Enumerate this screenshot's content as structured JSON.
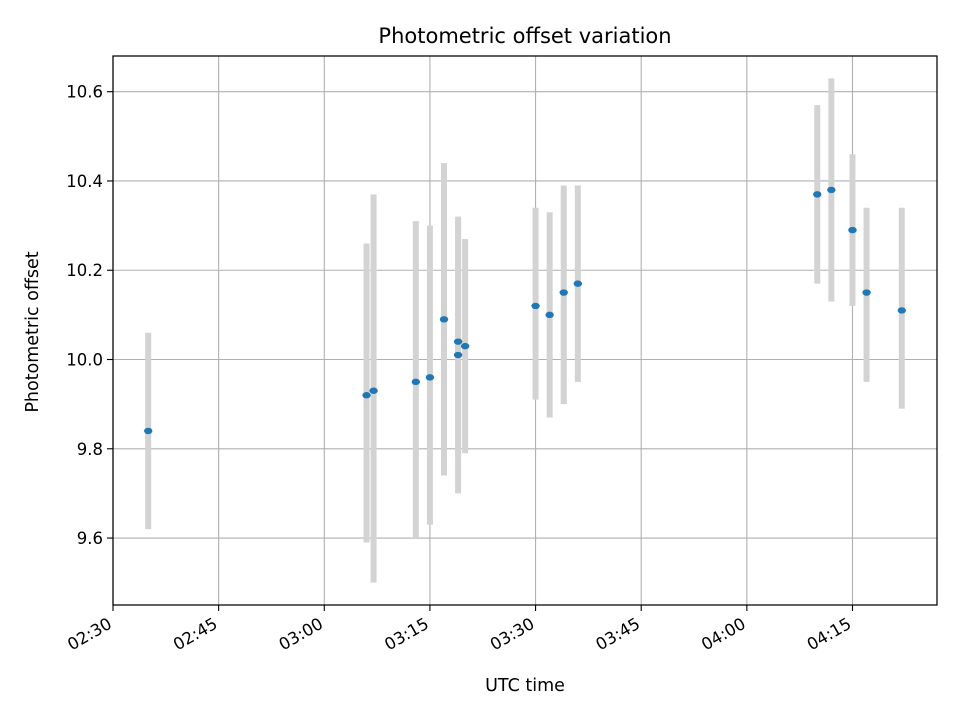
{
  "chart_data": {
    "type": "scatter",
    "title": "Photometric offset variation",
    "xlabel": "UTC time",
    "ylabel": "Photometric offset",
    "grid": true,
    "x_ticks": [
      "02:30",
      "02:45",
      "03:00",
      "03:15",
      "03:30",
      "03:45",
      "04:00",
      "04:15"
    ],
    "y_ticks": [
      "9.6",
      "9.8",
      "10.0",
      "10.2",
      "10.4",
      "10.6"
    ],
    "xlim": [
      "02:30",
      "04:27"
    ],
    "ylim": [
      9.45,
      10.68
    ],
    "colors": {
      "point": "#1f77b4",
      "errorbar": "#d3d3d3",
      "grid": "#b0b0b0"
    },
    "points": [
      {
        "x": "02:35",
        "y": 9.84,
        "y_err_low": 9.62,
        "y_err_high": 10.06
      },
      {
        "x": "03:06",
        "y": 9.92,
        "y_err_low": 9.59,
        "y_err_high": 10.26
      },
      {
        "x": "03:07",
        "y": 9.93,
        "y_err_low": 9.5,
        "y_err_high": 10.37
      },
      {
        "x": "03:13",
        "y": 9.95,
        "y_err_low": 9.6,
        "y_err_high": 10.31
      },
      {
        "x": "03:15",
        "y": 9.96,
        "y_err_low": 9.63,
        "y_err_high": 10.3
      },
      {
        "x": "03:17",
        "y": 10.09,
        "y_err_low": 9.74,
        "y_err_high": 10.44
      },
      {
        "x": "03:19",
        "y": 10.04,
        "y_err_low": 9.78,
        "y_err_high": 10.31
      },
      {
        "x": "03:19",
        "y": 10.01,
        "y_err_low": 9.7,
        "y_err_high": 10.32
      },
      {
        "x": "03:20",
        "y": 10.03,
        "y_err_low": 9.79,
        "y_err_high": 10.27
      },
      {
        "x": "03:30",
        "y": 10.12,
        "y_err_low": 9.91,
        "y_err_high": 10.34
      },
      {
        "x": "03:32",
        "y": 10.1,
        "y_err_low": 9.87,
        "y_err_high": 10.33
      },
      {
        "x": "03:34",
        "y": 10.15,
        "y_err_low": 9.9,
        "y_err_high": 10.39
      },
      {
        "x": "03:36",
        "y": 10.17,
        "y_err_low": 9.95,
        "y_err_high": 10.39
      },
      {
        "x": "04:10",
        "y": 10.37,
        "y_err_low": 10.17,
        "y_err_high": 10.57
      },
      {
        "x": "04:12",
        "y": 10.38,
        "y_err_low": 10.13,
        "y_err_high": 10.63
      },
      {
        "x": "04:15",
        "y": 10.29,
        "y_err_low": 10.12,
        "y_err_high": 10.46
      },
      {
        "x": "04:17",
        "y": 10.15,
        "y_err_low": 9.95,
        "y_err_high": 10.34
      },
      {
        "x": "04:22",
        "y": 10.11,
        "y_err_low": 9.89,
        "y_err_high": 10.34
      }
    ]
  }
}
